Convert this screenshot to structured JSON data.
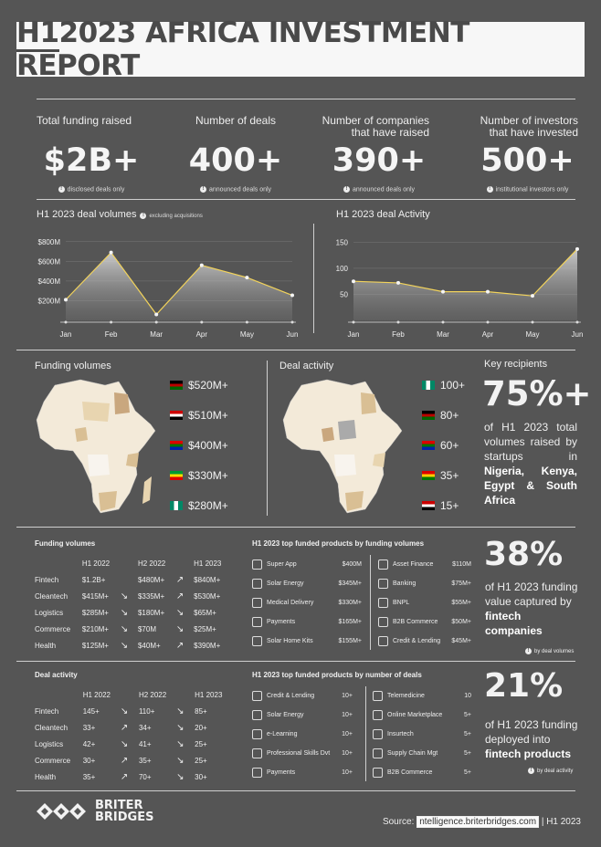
{
  "header": {
    "title_part1": "H1",
    "title_part2": "2023",
    "title_rest": " AFRICA INVESTMENT REPORT"
  },
  "stats": [
    {
      "label": "Total funding raised",
      "value": "$2B+",
      "note": "disclosed deals only"
    },
    {
      "label": "Number of deals",
      "value": "400+",
      "note": "announced deals only"
    },
    {
      "label": "Number of companies that have raised",
      "value": "390+",
      "note": "announced deals only"
    },
    {
      "label": "Number of investors that have invested",
      "value": "500+",
      "note": "institutional investors only"
    }
  ],
  "volumes_title": "H1 2023 deal volumes",
  "volumes_note": "excluding acquisitions",
  "activity_title": "H1 2023 deal Activity",
  "chart_data": [
    {
      "type": "area",
      "title": "H1 2023 deal volumes",
      "x": [
        "Jan",
        "Feb",
        "Mar",
        "Apr",
        "May",
        "Jun"
      ],
      "values": [
        210,
        690,
        60,
        560,
        435,
        255
      ],
      "ylim": [
        0,
        900
      ],
      "yticks": [
        "$200M",
        "$400M",
        "$600M",
        "$800M"
      ],
      "ytick_vals": [
        200,
        400,
        600,
        800
      ]
    },
    {
      "type": "area",
      "title": "H1 2023 deal Activity",
      "x": [
        "Jan",
        "Feb",
        "Mar",
        "Apr",
        "May",
        "Jun"
      ],
      "values": [
        75,
        72,
        55,
        55,
        47,
        137
      ],
      "ylim": [
        0,
        170
      ],
      "yticks": [
        "50",
        "100",
        "150"
      ],
      "ytick_vals": [
        50,
        100,
        150
      ]
    }
  ],
  "funding_map": {
    "title": "Funding volumes",
    "items": [
      {
        "value": "$520M+",
        "flag": "kenya"
      },
      {
        "value": "$510M+",
        "flag": "egypt"
      },
      {
        "value": "$400M+",
        "flag": "southafrica"
      },
      {
        "value": "$330M+",
        "flag": "ethiopia"
      },
      {
        "value": "$280M+",
        "flag": "nigeria"
      }
    ]
  },
  "activity_map": {
    "title": "Deal activity",
    "items": [
      {
        "value": "100+",
        "flag": "nigeria"
      },
      {
        "value": "80+",
        "flag": "kenya"
      },
      {
        "value": "60+",
        "flag": "southafrica"
      },
      {
        "value": "35+",
        "flag": "ghana"
      },
      {
        "value": "15+",
        "flag": "egypt"
      }
    ]
  },
  "key": {
    "title": "Key recipients",
    "big": "75%+",
    "text1": "of H1 2023 total volumes raised by startups in",
    "text_bold": "Nigeria, Kenya, Egypt & South Africa"
  },
  "funding_table": {
    "title": "Funding volumes",
    "headers": [
      "H1 2022",
      "H2 2022",
      "H1 2023"
    ],
    "rows": [
      {
        "name": "Fintech",
        "a": "$1.2B+",
        "a2": "",
        "b": "$480M+",
        "b2": "↗",
        "c": "$840M+"
      },
      {
        "name": "Cleantech",
        "a": "$415M+",
        "a2": "↘",
        "b": "$335M+",
        "b2": "↗",
        "c": "$530M+"
      },
      {
        "name": "Logistics",
        "a": "$285M+",
        "a2": "↘",
        "b": "$180M+",
        "b2": "↘",
        "c": "$65M+"
      },
      {
        "name": "Commerce",
        "a": "$210M+",
        "a2": "↘",
        "b": "$70M",
        "b2": "↘",
        "c": "$25M+"
      },
      {
        "name": "Health",
        "a": "$125M+",
        "a2": "↘",
        "b": "$40M+",
        "b2": "↗",
        "c": "$390M+"
      }
    ]
  },
  "top_funded": {
    "title": "H1 2023 top funded products by funding volumes",
    "left": [
      {
        "name": "Super App",
        "val": "$400M"
      },
      {
        "name": "Solar Energy",
        "val": "$345M+"
      },
      {
        "name": "Medical Delivery",
        "val": "$330M+"
      },
      {
        "name": "Payments",
        "val": "$165M+"
      },
      {
        "name": "Solar Home Kits",
        "val": "$155M+"
      }
    ],
    "right": [
      {
        "name": "Asset Finance",
        "val": "$110M"
      },
      {
        "name": "Banking",
        "val": "$75M+"
      },
      {
        "name": "BNPL",
        "val": "$55M+"
      },
      {
        "name": "B2B Commerce",
        "val": "$50M+"
      },
      {
        "name": "Credit & Lending",
        "val": "$45M+"
      }
    ]
  },
  "fin38": {
    "big": "38%",
    "text": "of H1 2023 funding value captured by",
    "bold": "fintech companies",
    "note": "by deal volumes"
  },
  "deal_table": {
    "title": "Deal activity",
    "headers": [
      "H1 2022",
      "H2 2022",
      "H1 2023"
    ],
    "rows": [
      {
        "name": "Fintech",
        "a": "145+",
        "a2": "↘",
        "b": "110+",
        "b2": "↘",
        "c": "85+"
      },
      {
        "name": "Cleantech",
        "a": "33+",
        "a2": "↗",
        "b": "34+",
        "b2": "↘",
        "c": "20+"
      },
      {
        "name": "Logistics",
        "a": "42+",
        "a2": "↘",
        "b": "41+",
        "b2": "↘",
        "c": "25+"
      },
      {
        "name": "Commerce",
        "a": "30+",
        "a2": "↗",
        "b": "35+",
        "b2": "↘",
        "c": "25+"
      },
      {
        "name": "Health",
        "a": "35+",
        "a2": "↗",
        "b": "70+",
        "b2": "↘",
        "c": "30+"
      }
    ]
  },
  "top_deals": {
    "title": "H1 2023 top funded products by number of deals",
    "left": [
      {
        "name": "Credit & Lending",
        "val": "10+"
      },
      {
        "name": "Solar Energy",
        "val": "10+"
      },
      {
        "name": "e-Learning",
        "val": "10+"
      },
      {
        "name": "Professional Skills Dvt",
        "val": "10+"
      },
      {
        "name": "Payments",
        "val": "10+"
      }
    ],
    "right": [
      {
        "name": "Telemedicine",
        "val": "10"
      },
      {
        "name": "Online Marketplace",
        "val": "5+"
      },
      {
        "name": "Insurtech",
        "val": "5+"
      },
      {
        "name": "Supply Chain Mgt",
        "val": "5+"
      },
      {
        "name": "B2B Commerce",
        "val": "5+"
      }
    ]
  },
  "fin21": {
    "big": "21%",
    "text": "of H1 2023 funding deployed into",
    "bold": "fintech products",
    "note": "by deal activity"
  },
  "footer": {
    "logo1": "BRITER",
    "logo2": "BRIDGES",
    "source_label": "Source:",
    "source_link": "ntelligence.briterbridges.com",
    "source_tail": "| H1 2023"
  }
}
